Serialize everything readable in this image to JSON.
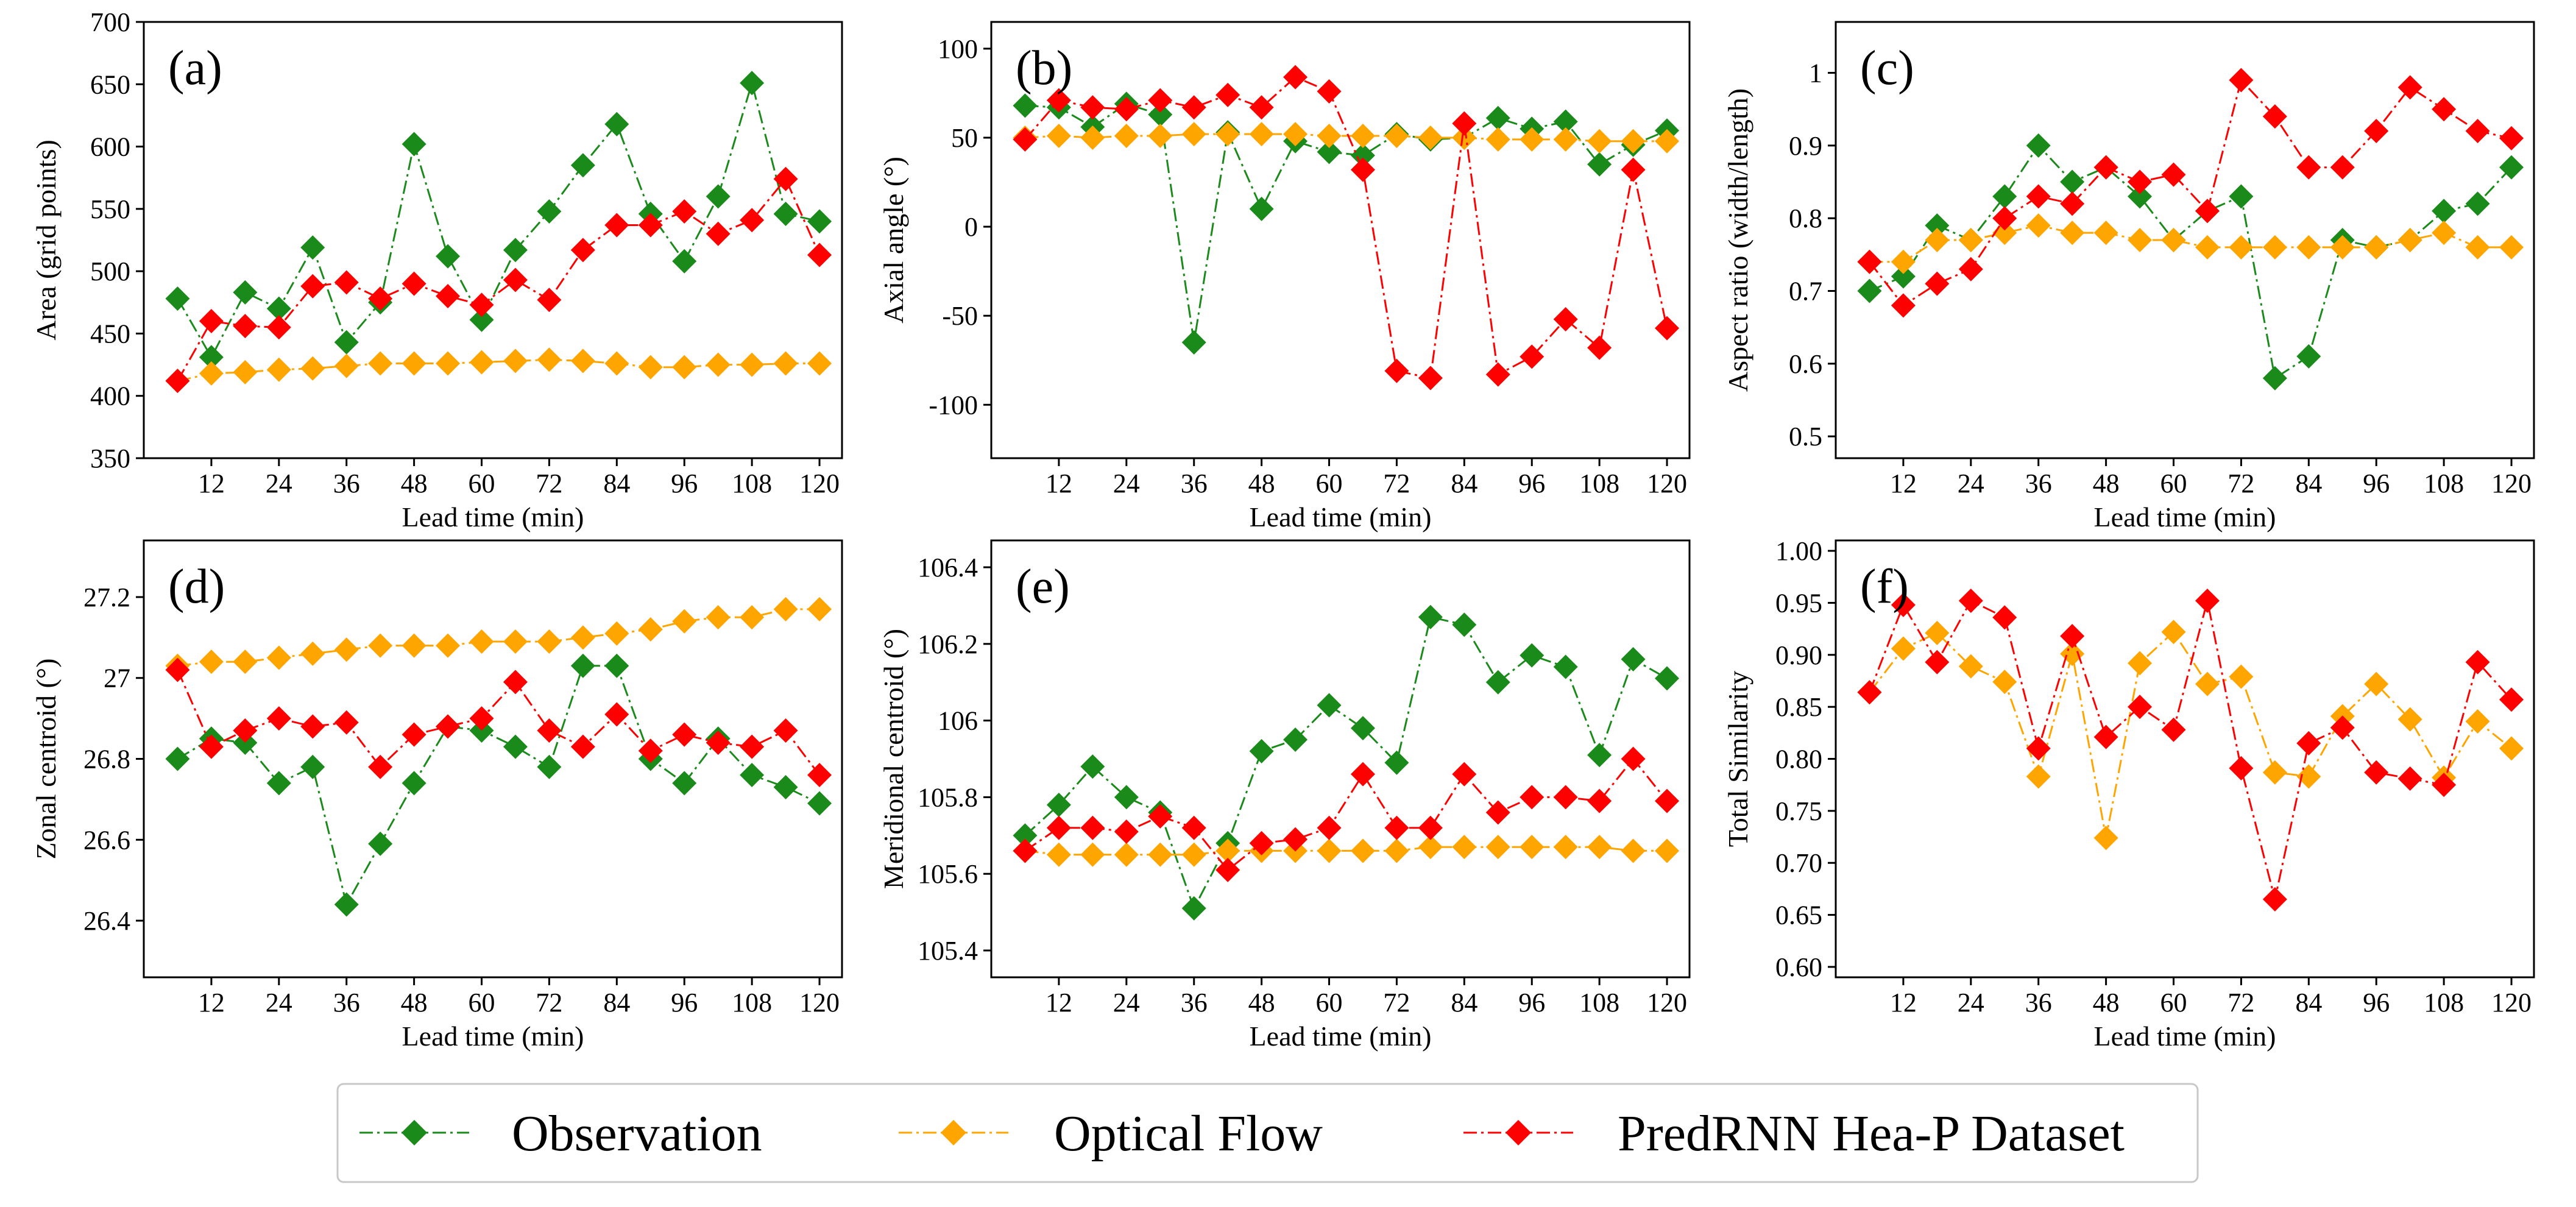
{
  "legend": {
    "entries": [
      {
        "label": "Observation",
        "color": "#1a8a1a"
      },
      {
        "label": "Optical Flow",
        "color": "#ffa500"
      },
      {
        "label": "PredRNN Hea-P Dataset",
        "color": "#ff0000"
      }
    ]
  },
  "chart_data": [
    {
      "type": "line",
      "panel_label": "(a)",
      "xlabel": "Lead time (min)",
      "ylabel": "Area (grid points)",
      "x": [
        6,
        12,
        18,
        24,
        30,
        36,
        42,
        48,
        54,
        60,
        66,
        72,
        78,
        84,
        90,
        96,
        102,
        108,
        114,
        120
      ],
      "xlim": [
        0,
        124
      ],
      "ylim": [
        350,
        700
      ],
      "xticks": [
        12,
        24,
        36,
        48,
        60,
        72,
        84,
        96,
        108,
        120
      ],
      "yticks": [
        350,
        400,
        450,
        500,
        550,
        600,
        650,
        700
      ],
      "series": [
        {
          "name": "Observation",
          "values": [
            478,
            431,
            483,
            470,
            519,
            443,
            475,
            602,
            512,
            461,
            517,
            548,
            585,
            618,
            546,
            508,
            560,
            651,
            546,
            540
          ]
        },
        {
          "name": "Optical Flow",
          "values": [
            412,
            418,
            419,
            421,
            422,
            424,
            426,
            426,
            426,
            427,
            428,
            429,
            428,
            426,
            423,
            423,
            425,
            425,
            426,
            426
          ]
        },
        {
          "name": "PredRNN Hea-P Dataset",
          "values": [
            412,
            460,
            456,
            455,
            488,
            491,
            478,
            490,
            480,
            473,
            493,
            477,
            517,
            537,
            537,
            548,
            530,
            541,
            574,
            513
          ]
        }
      ]
    },
    {
      "type": "line",
      "panel_label": "(b)",
      "xlabel": "Lead time (min)",
      "ylabel": "Axial angle (°)",
      "x": [
        6,
        12,
        18,
        24,
        30,
        36,
        42,
        48,
        54,
        60,
        66,
        72,
        78,
        84,
        90,
        96,
        102,
        108,
        114,
        120
      ],
      "xlim": [
        0,
        124
      ],
      "ylim": [
        -130,
        115
      ],
      "xticks": [
        12,
        24,
        36,
        48,
        60,
        72,
        84,
        96,
        108,
        120
      ],
      "yticks": [
        -100,
        -50,
        0,
        50,
        100
      ],
      "series": [
        {
          "name": "Observation",
          "values": [
            68,
            67,
            56,
            69,
            63,
            -65,
            53,
            10,
            48,
            42,
            40,
            52,
            49,
            50,
            61,
            55,
            59,
            35,
            46,
            54
          ]
        },
        {
          "name": "Optical Flow",
          "values": [
            50,
            51,
            50,
            51,
            51,
            52,
            52,
            52,
            52,
            51,
            51,
            51,
            50,
            50,
            49,
            49,
            49,
            48,
            48,
            48
          ]
        },
        {
          "name": "PredRNN Hea-P Dataset",
          "values": [
            49,
            71,
            67,
            66,
            71,
            67,
            74,
            67,
            84,
            76,
            32,
            -81,
            -85,
            58,
            -83,
            -73,
            -52,
            -68,
            32,
            -57
          ]
        }
      ]
    },
    {
      "type": "line",
      "panel_label": "(c)",
      "xlabel": "Lead time (min)",
      "ylabel": "Aspect ratio (width/length)",
      "x": [
        6,
        12,
        18,
        24,
        30,
        36,
        42,
        48,
        54,
        60,
        66,
        72,
        78,
        84,
        90,
        96,
        102,
        108,
        114,
        120
      ],
      "xlim": [
        0,
        124
      ],
      "ylim": [
        0.47,
        1.07
      ],
      "xticks": [
        12,
        24,
        36,
        48,
        60,
        72,
        84,
        96,
        108,
        120
      ],
      "yticks": [
        0.5,
        0.6,
        0.7,
        0.8,
        0.9,
        1.0
      ],
      "series": [
        {
          "name": "Observation",
          "values": [
            0.7,
            0.72,
            0.79,
            0.77,
            0.83,
            0.9,
            0.85,
            0.87,
            0.83,
            0.77,
            0.81,
            0.83,
            0.58,
            0.61,
            0.77,
            0.76,
            0.77,
            0.81,
            0.82,
            0.87
          ]
        },
        {
          "name": "Optical Flow",
          "values": [
            0.74,
            0.74,
            0.77,
            0.77,
            0.78,
            0.79,
            0.78,
            0.78,
            0.77,
            0.77,
            0.76,
            0.76,
            0.76,
            0.76,
            0.76,
            0.76,
            0.77,
            0.78,
            0.76,
            0.76
          ]
        },
        {
          "name": "PredRNN Hea-P Dataset",
          "values": [
            0.74,
            0.68,
            0.71,
            0.73,
            0.8,
            0.83,
            0.82,
            0.87,
            0.85,
            0.86,
            0.81,
            0.99,
            0.94,
            0.87,
            0.87,
            0.92,
            0.98,
            0.95,
            0.92,
            0.91
          ]
        }
      ]
    },
    {
      "type": "line",
      "panel_label": "(d)",
      "xlabel": "Lead time (min)",
      "ylabel": "Zonal centroid (°)",
      "x": [
        6,
        12,
        18,
        24,
        30,
        36,
        42,
        48,
        54,
        60,
        66,
        72,
        78,
        84,
        90,
        96,
        102,
        108,
        114,
        120
      ],
      "xlim": [
        0,
        124
      ],
      "ylim": [
        26.26,
        27.34
      ],
      "xticks": [
        12,
        24,
        36,
        48,
        60,
        72,
        84,
        96,
        108,
        120
      ],
      "yticks": [
        26.4,
        26.6,
        26.8,
        27.0,
        27.2
      ],
      "series": [
        {
          "name": "Observation",
          "values": [
            26.8,
            26.85,
            26.84,
            26.74,
            26.78,
            26.44,
            26.59,
            26.74,
            26.88,
            26.87,
            26.83,
            26.78,
            27.03,
            27.03,
            26.8,
            26.74,
            26.85,
            26.76,
            26.73,
            26.69
          ]
        },
        {
          "name": "Optical Flow",
          "values": [
            27.03,
            27.04,
            27.04,
            27.05,
            27.06,
            27.07,
            27.08,
            27.08,
            27.08,
            27.09,
            27.09,
            27.09,
            27.1,
            27.11,
            27.12,
            27.14,
            27.15,
            27.15,
            27.17,
            27.17
          ]
        },
        {
          "name": "PredRNN Hea-P Dataset",
          "values": [
            27.02,
            26.83,
            26.87,
            26.9,
            26.88,
            26.89,
            26.78,
            26.86,
            26.88,
            26.9,
            26.99,
            26.87,
            26.83,
            26.91,
            26.82,
            26.86,
            26.84,
            26.83,
            26.87,
            26.76
          ]
        }
      ]
    },
    {
      "type": "line",
      "panel_label": "(e)",
      "xlabel": "Lead time (min)",
      "ylabel": "Meridional centroid (°)",
      "x": [
        6,
        12,
        18,
        24,
        30,
        36,
        42,
        48,
        54,
        60,
        66,
        72,
        78,
        84,
        90,
        96,
        102,
        108,
        114,
        120
      ],
      "xlim": [
        0,
        124
      ],
      "ylim": [
        105.33,
        106.47
      ],
      "xticks": [
        12,
        24,
        36,
        48,
        60,
        72,
        84,
        96,
        108,
        120
      ],
      "yticks": [
        105.4,
        105.6,
        105.8,
        106.0,
        106.2,
        106.4
      ],
      "series": [
        {
          "name": "Observation",
          "values": [
            105.7,
            105.78,
            105.88,
            105.8,
            105.76,
            105.51,
            105.68,
            105.92,
            105.95,
            106.04,
            105.98,
            105.89,
            106.27,
            106.25,
            106.1,
            106.17,
            106.14,
            105.91,
            106.16,
            106.11
          ]
        },
        {
          "name": "Optical Flow",
          "values": [
            105.66,
            105.65,
            105.65,
            105.65,
            105.65,
            105.65,
            105.66,
            105.66,
            105.66,
            105.66,
            105.66,
            105.66,
            105.67,
            105.67,
            105.67,
            105.67,
            105.67,
            105.67,
            105.66,
            105.66
          ]
        },
        {
          "name": "PredRNN Hea-P Dataset",
          "values": [
            105.66,
            105.72,
            105.72,
            105.71,
            105.75,
            105.72,
            105.61,
            105.68,
            105.69,
            105.72,
            105.86,
            105.72,
            105.72,
            105.86,
            105.76,
            105.8,
            105.8,
            105.79,
            105.9,
            105.79
          ]
        }
      ]
    },
    {
      "type": "line",
      "panel_label": "(f)",
      "xlabel": "Lead time (min)",
      "ylabel": "Total Similarity",
      "x": [
        6,
        12,
        18,
        24,
        30,
        36,
        42,
        48,
        54,
        60,
        66,
        72,
        78,
        84,
        90,
        96,
        102,
        108,
        114,
        120
      ],
      "xlim": [
        0,
        124
      ],
      "ylim": [
        0.59,
        1.01
      ],
      "xticks": [
        12,
        24,
        36,
        48,
        60,
        72,
        84,
        96,
        108,
        120
      ],
      "yticks": [
        0.6,
        0.65,
        0.7,
        0.75,
        0.8,
        0.85,
        0.9,
        0.95,
        1.0
      ],
      "ytick_format": 2,
      "series": [
        {
          "name": "Optical Flow",
          "values": [
            0.864,
            0.906,
            0.921,
            0.889,
            0.874,
            0.783,
            0.901,
            0.724,
            0.892,
            0.922,
            0.872,
            0.879,
            0.787,
            0.783,
            0.841,
            0.872,
            0.838,
            0.782,
            0.836,
            0.81
          ]
        },
        {
          "name": "PredRNN Hea-P Dataset",
          "values": [
            0.864,
            0.948,
            0.893,
            0.952,
            0.936,
            0.81,
            0.918,
            0.821,
            0.85,
            0.828,
            0.952,
            0.791,
            0.665,
            0.815,
            0.83,
            0.787,
            0.781,
            0.775,
            0.893,
            0.857
          ]
        }
      ]
    }
  ]
}
